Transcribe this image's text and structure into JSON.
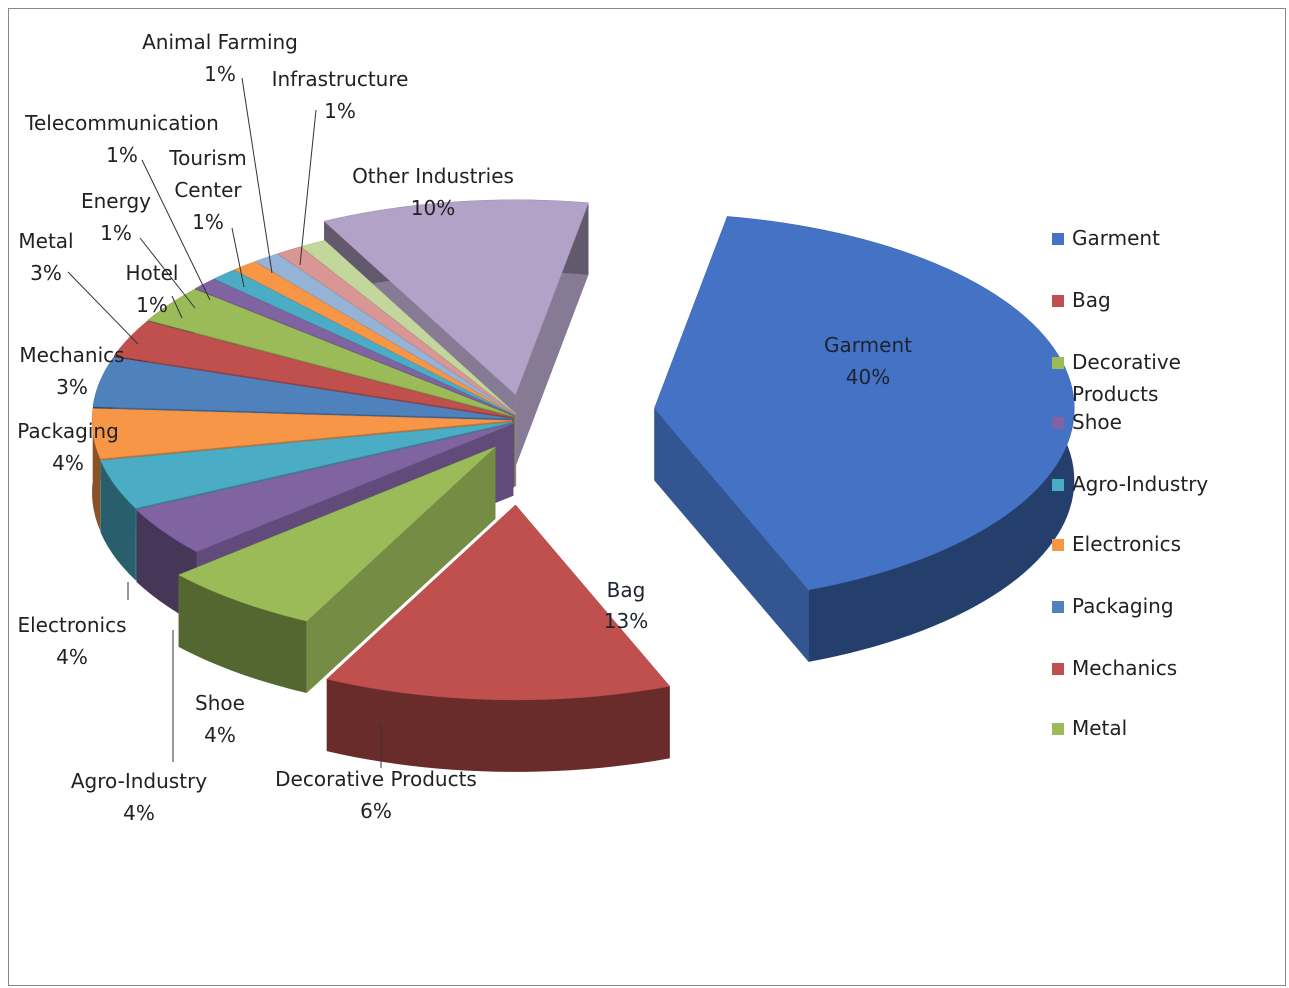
{
  "chart_data": {
    "type": "pie",
    "title": "",
    "three_d": true,
    "exploded": true,
    "legend_placement": "right",
    "slices": [
      {
        "label": "Garment",
        "value": 40,
        "display": "40%",
        "color": "#4472c4"
      },
      {
        "label": "Bag",
        "value": 13,
        "display": "13%",
        "color": "#c0504d"
      },
      {
        "label": "Decorative Products",
        "value": 6,
        "display": "6%",
        "color": "#9bbb59"
      },
      {
        "label": "Shoe",
        "value": 4,
        "display": "4%",
        "color": "#8064a2"
      },
      {
        "label": "Agro-Industry",
        "value": 4,
        "display": "4%",
        "color": "#4bacc6"
      },
      {
        "label": "Electronics",
        "value": 4,
        "display": "4%",
        "color": "#f79646"
      },
      {
        "label": "Packaging",
        "value": 4,
        "display": "4%",
        "color": "#4f81bd"
      },
      {
        "label": "Mechanics",
        "value": 3,
        "display": "3%",
        "color": "#c0504d"
      },
      {
        "label": "Metal",
        "value": 3,
        "display": "3%",
        "color": "#9bbb59"
      },
      {
        "label": "Hotel",
        "value": 1,
        "display": "1%",
        "color": "#8064a2"
      },
      {
        "label": "Energy",
        "value": 1,
        "display": "1%",
        "color": "#4bacc6"
      },
      {
        "label": "Telecommunication",
        "value": 1,
        "display": "1%",
        "color": "#f79646"
      },
      {
        "label": "Tourism Center",
        "value": 1,
        "display": "1%",
        "color": "#95b3d7"
      },
      {
        "label": "Animal Farming",
        "value": 1,
        "display": "1%",
        "color": "#d99694"
      },
      {
        "label": "Infrastructure",
        "value": 1,
        "display": "1%",
        "color": "#c3d69b"
      },
      {
        "label": "Other Industries",
        "value": 10,
        "display": "10%",
        "color": "#b3a2c7"
      }
    ],
    "legend": [
      "Garment",
      "Bag",
      "Decorative Products",
      "Shoe",
      "Agro-Industry",
      "Electronics",
      "Packaging",
      "Mechanics",
      "Metal"
    ]
  }
}
